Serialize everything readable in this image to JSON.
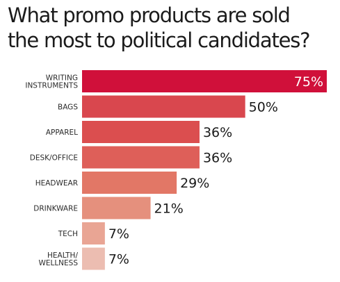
{
  "title_line1": "What promo products are sold",
  "title_line2": "the most to political candidates?",
  "chart_data": {
    "type": "bar",
    "orientation": "horizontal",
    "title": "What promo products are sold the most to political candidates?",
    "categories": [
      [
        "WRITING",
        "INSTRUMENTS"
      ],
      [
        "BAGS"
      ],
      [
        "APPAREL"
      ],
      [
        "DESK/OFFICE"
      ],
      [
        "HEADWEAR"
      ],
      [
        "DRINKWARE"
      ],
      [
        "TECH"
      ],
      [
        "HEALTH/",
        "WELLNESS"
      ]
    ],
    "values": [
      75,
      50,
      36,
      36,
      29,
      21,
      7,
      7
    ],
    "value_labels": [
      "75%",
      "50%",
      "36%",
      "36%",
      "29%",
      "21%",
      "7%",
      "7%"
    ],
    "colors": [
      "#d0103a",
      "#d9474e",
      "#db4e4f",
      "#de5f59",
      "#e27766",
      "#e5907d",
      "#e9a594",
      "#ecbdb1"
    ],
    "xlim": [
      0,
      75
    ],
    "grid": false
  }
}
